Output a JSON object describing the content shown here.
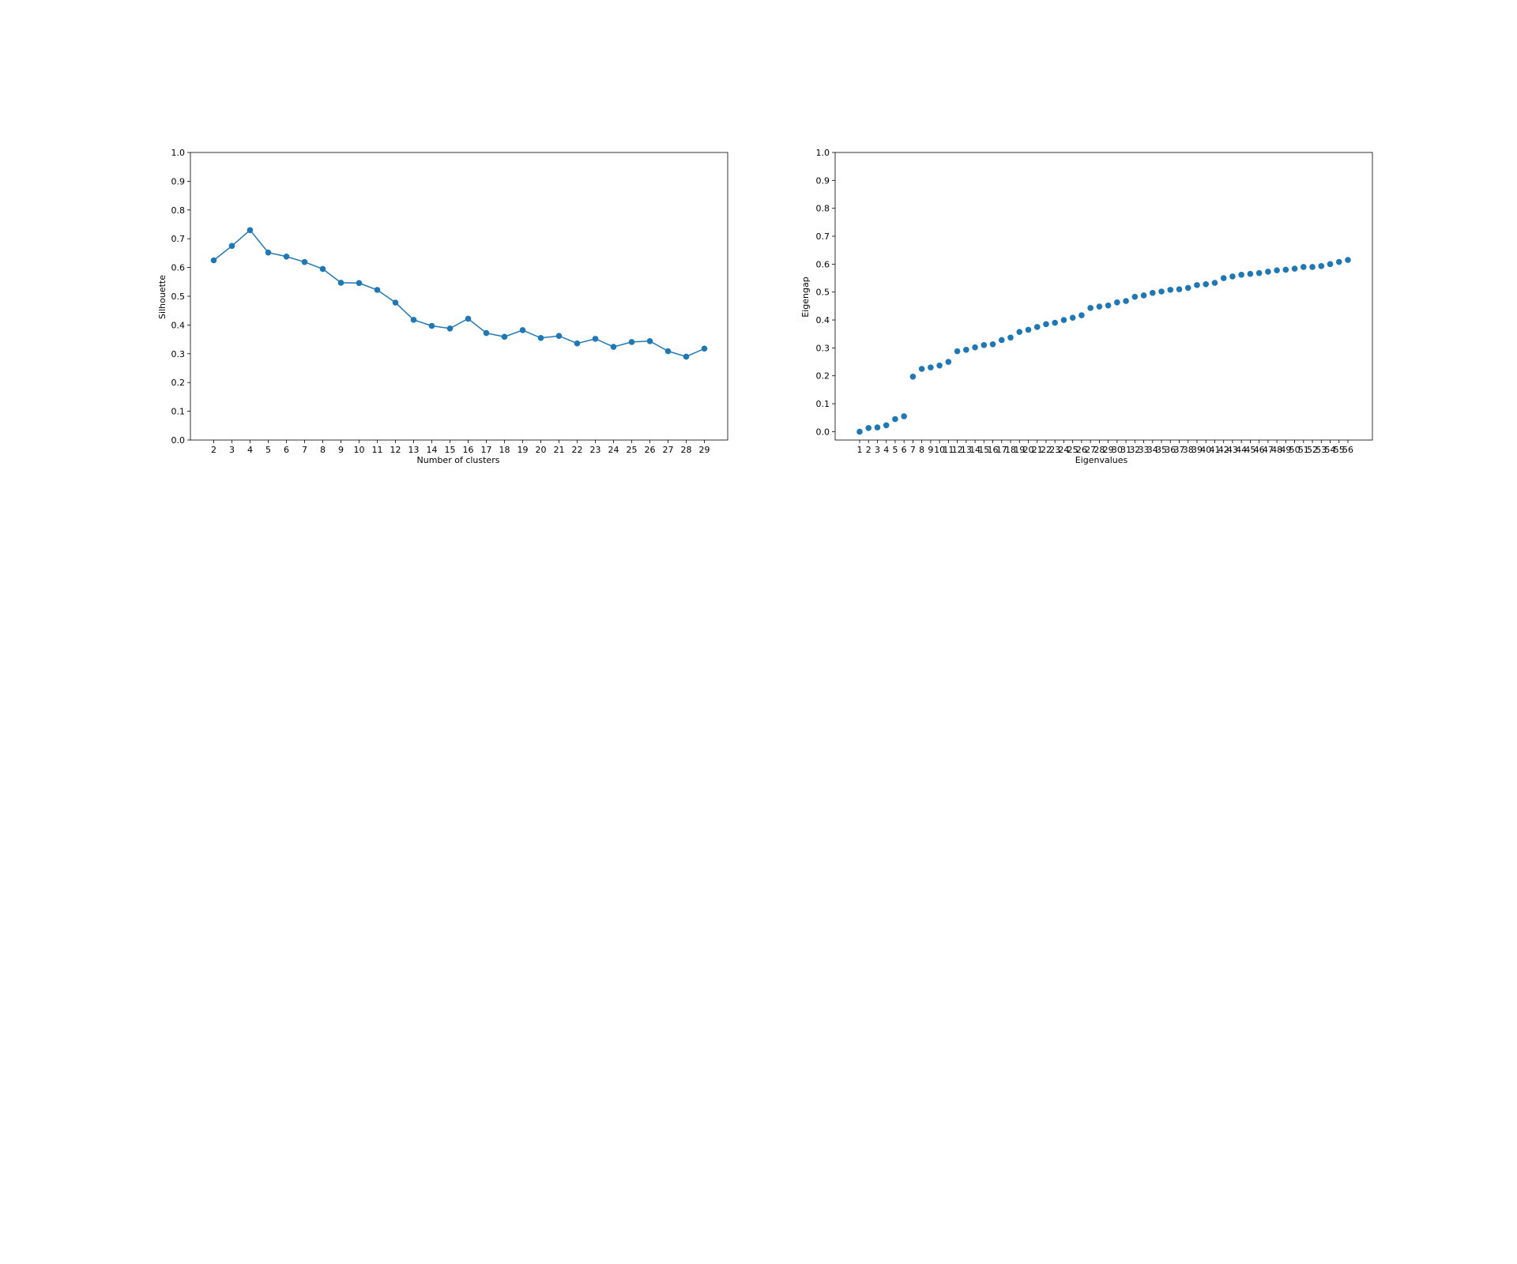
{
  "chart_data": [
    {
      "type": "line",
      "title": "",
      "xlabel": "Number of clusters",
      "ylabel": "Silhouette",
      "ylim": [
        0,
        1
      ],
      "yticks": [
        "0.0",
        "0.1",
        "0.2",
        "0.3",
        "0.4",
        "0.5",
        "0.6",
        "0.7",
        "0.8",
        "0.9",
        "1.0"
      ],
      "grid": false,
      "legend": "none",
      "color": "#1f77b4",
      "markers": true,
      "x": [
        2,
        3,
        4,
        5,
        6,
        7,
        8,
        9,
        10,
        11,
        12,
        13,
        14,
        15,
        16,
        17,
        18,
        19,
        20,
        21,
        22,
        23,
        24,
        25,
        26,
        27,
        28,
        29
      ],
      "values": [
        0.625,
        0.675,
        0.73,
        0.652,
        0.638,
        0.619,
        0.595,
        0.547,
        0.546,
        0.522,
        0.478,
        0.418,
        0.397,
        0.388,
        0.422,
        0.372,
        0.359,
        0.382,
        0.355,
        0.362,
        0.336,
        0.352,
        0.324,
        0.341,
        0.344,
        0.309,
        0.29,
        0.318
      ]
    },
    {
      "type": "scatter",
      "title": "",
      "xlabel": "Eigenvalues",
      "ylabel": "Eigengap",
      "ylim": [
        0,
        1
      ],
      "yticks": [
        "0.0",
        "0.1",
        "0.2",
        "0.3",
        "0.4",
        "0.5",
        "0.6",
        "0.7",
        "0.8",
        "0.9",
        "1.0"
      ],
      "grid": false,
      "legend": "none",
      "color": "#1f77b4",
      "x": [
        1,
        2,
        3,
        4,
        5,
        6,
        7,
        8,
        9,
        10,
        11,
        12,
        13,
        14,
        15,
        16,
        17,
        18,
        19,
        20,
        21,
        22,
        23,
        24,
        25,
        26,
        27,
        28,
        29,
        30,
        31,
        32,
        33,
        34,
        35,
        36,
        37,
        38,
        39,
        40,
        41,
        42,
        43,
        44,
        45,
        46,
        47,
        48,
        49,
        50,
        51,
        52,
        53,
        54,
        55,
        56
      ],
      "values": [
        0.0,
        0.013,
        0.015,
        0.023,
        0.045,
        0.055,
        0.197,
        0.225,
        0.23,
        0.237,
        0.25,
        0.288,
        0.293,
        0.302,
        0.31,
        0.313,
        0.328,
        0.337,
        0.357,
        0.365,
        0.375,
        0.385,
        0.39,
        0.4,
        0.408,
        0.417,
        0.443,
        0.448,
        0.452,
        0.463,
        0.468,
        0.483,
        0.488,
        0.497,
        0.502,
        0.508,
        0.51,
        0.515,
        0.525,
        0.528,
        0.533,
        0.55,
        0.556,
        0.562,
        0.565,
        0.568,
        0.573,
        0.578,
        0.58,
        0.584,
        0.59,
        0.59,
        0.593,
        0.6,
        0.608,
        0.615
      ]
    }
  ]
}
